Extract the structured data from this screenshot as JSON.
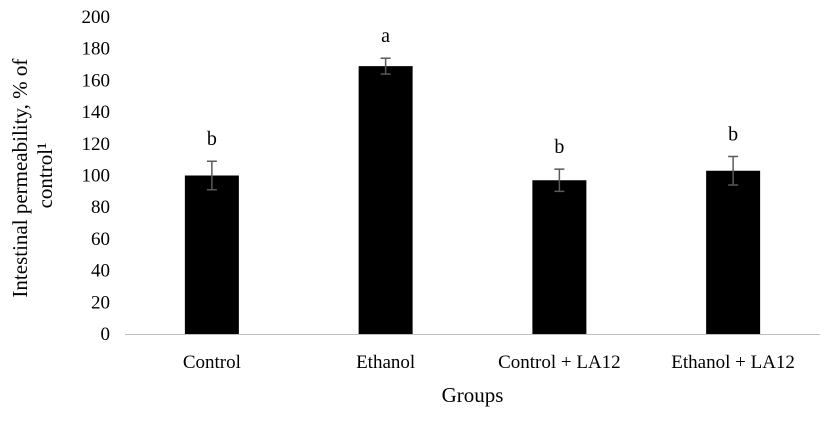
{
  "chart_data": {
    "type": "bar",
    "title": "",
    "xlabel": "Groups",
    "ylabel_line1": "Intestinal permeability, % of",
    "ylabel_line2": "control¹",
    "categories": [
      "Control",
      "Ethanol",
      "Control + LA12",
      "Ethanol + LA12"
    ],
    "values": [
      100,
      169,
      97,
      103
    ],
    "error_low": [
      91,
      164,
      90,
      94
    ],
    "error_high": [
      109,
      174,
      104,
      112
    ],
    "significance_labels": [
      "b",
      "a",
      "b",
      "b"
    ],
    "ylim": [
      0,
      200
    ],
    "yticks": [
      0,
      20,
      40,
      60,
      80,
      100,
      120,
      140,
      160,
      180,
      200
    ],
    "ytick_labels": [
      "0",
      "20",
      "40",
      "60",
      "80",
      "100",
      "120",
      "140",
      "160",
      "180",
      "200"
    ],
    "grid": false,
    "legend": "none",
    "colors": {
      "bar": "#000000",
      "error_bar": "#595959",
      "axis": "#bfbfbf"
    }
  }
}
